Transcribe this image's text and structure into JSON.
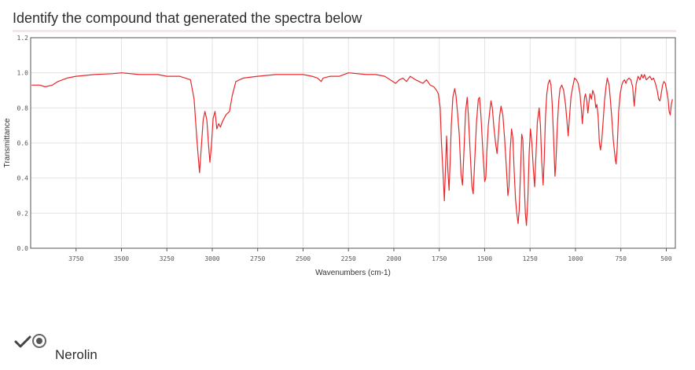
{
  "question": {
    "text": "Identify the compound that generated the spectra below"
  },
  "answer": {
    "label": "Nerolin",
    "selected": true,
    "correct": true
  },
  "colors": {
    "line": "#e8272a",
    "grid": "#e3e3e3",
    "frame": "#555555"
  },
  "chart_data": {
    "type": "line",
    "title": "",
    "xlabel": "Wavenumbers (cm-1)",
    "ylabel": "Transmittance",
    "xlim": [
      4000,
      450
    ],
    "ylim": [
      0,
      1.2
    ],
    "x_reversed": true,
    "grid": true,
    "legend": "none",
    "xticks": [
      {
        "value": 3750,
        "label": "3750"
      },
      {
        "value": 3500,
        "label": "3500"
      },
      {
        "value": 3250,
        "label": "3250"
      },
      {
        "value": 3000,
        "label": "3000"
      },
      {
        "value": 2750,
        "label": "2750"
      },
      {
        "value": 2500,
        "label": "2500"
      },
      {
        "value": 2250,
        "label": "2250"
      },
      {
        "value": 2000,
        "label": "2000"
      },
      {
        "value": 1750,
        "label": "1750"
      },
      {
        "value": 1500,
        "label": "1500"
      },
      {
        "value": 1250,
        "label": "1250"
      },
      {
        "value": 1000,
        "label": "1000"
      },
      {
        "value": 750,
        "label": "750"
      },
      {
        "value": 500,
        "label": "500"
      }
    ],
    "yticks": [
      {
        "value": 0.0,
        "label": "0.0"
      },
      {
        "value": 0.2,
        "label": "0.2"
      },
      {
        "value": 0.4,
        "label": "0.4"
      },
      {
        "value": 0.6,
        "label": "0.6"
      },
      {
        "value": 0.8,
        "label": "0.8"
      },
      {
        "value": 1.0,
        "label": "1.0"
      },
      {
        "value": 1.2,
        "label": "1.2"
      }
    ],
    "series": [
      {
        "color": "#e8272a",
        "points": [
          [
            3995,
            0.93
          ],
          [
            3950,
            0.93
          ],
          [
            3920,
            0.92
          ],
          [
            3880,
            0.93
          ],
          [
            3850,
            0.95
          ],
          [
            3800,
            0.97
          ],
          [
            3750,
            0.98
          ],
          [
            3650,
            0.99
          ],
          [
            3550,
            0.995
          ],
          [
            3500,
            1.0
          ],
          [
            3400,
            0.99
          ],
          [
            3300,
            0.99
          ],
          [
            3250,
            0.98
          ],
          [
            3180,
            0.98
          ],
          [
            3120,
            0.96
          ],
          [
            3100,
            0.85
          ],
          [
            3085,
            0.62
          ],
          [
            3070,
            0.43
          ],
          [
            3060,
            0.58
          ],
          [
            3050,
            0.73
          ],
          [
            3040,
            0.78
          ],
          [
            3030,
            0.73
          ],
          [
            3020,
            0.58
          ],
          [
            3013,
            0.49
          ],
          [
            3005,
            0.58
          ],
          [
            2995,
            0.74
          ],
          [
            2985,
            0.78
          ],
          [
            2975,
            0.68
          ],
          [
            2965,
            0.71
          ],
          [
            2955,
            0.69
          ],
          [
            2945,
            0.72
          ],
          [
            2925,
            0.76
          ],
          [
            2905,
            0.78
          ],
          [
            2890,
            0.87
          ],
          [
            2870,
            0.95
          ],
          [
            2830,
            0.97
          ],
          [
            2750,
            0.98
          ],
          [
            2650,
            0.99
          ],
          [
            2550,
            0.99
          ],
          [
            2500,
            0.99
          ],
          [
            2450,
            0.98
          ],
          [
            2420,
            0.97
          ],
          [
            2400,
            0.95
          ],
          [
            2390,
            0.97
          ],
          [
            2350,
            0.98
          ],
          [
            2300,
            0.98
          ],
          [
            2250,
            1.0
          ],
          [
            2150,
            0.99
          ],
          [
            2100,
            0.99
          ],
          [
            2050,
            0.98
          ],
          [
            2020,
            0.96
          ],
          [
            1990,
            0.94
          ],
          [
            1970,
            0.96
          ],
          [
            1950,
            0.97
          ],
          [
            1930,
            0.95
          ],
          [
            1910,
            0.98
          ],
          [
            1880,
            0.96
          ],
          [
            1860,
            0.95
          ],
          [
            1840,
            0.94
          ],
          [
            1820,
            0.96
          ],
          [
            1800,
            0.93
          ],
          [
            1780,
            0.92
          ],
          [
            1765,
            0.9
          ],
          [
            1755,
            0.88
          ],
          [
            1745,
            0.8
          ],
          [
            1738,
            0.6
          ],
          [
            1730,
            0.45
          ],
          [
            1722,
            0.27
          ],
          [
            1716,
            0.45
          ],
          [
            1710,
            0.64
          ],
          [
            1703,
            0.45
          ],
          [
            1696,
            0.33
          ],
          [
            1690,
            0.5
          ],
          [
            1684,
            0.7
          ],
          [
            1675,
            0.86
          ],
          [
            1665,
            0.91
          ],
          [
            1658,
            0.87
          ],
          [
            1650,
            0.78
          ],
          [
            1640,
            0.65
          ],
          [
            1630,
            0.42
          ],
          [
            1622,
            0.36
          ],
          [
            1614,
            0.55
          ],
          [
            1605,
            0.78
          ],
          [
            1596,
            0.86
          ],
          [
            1590,
            0.76
          ],
          [
            1580,
            0.55
          ],
          [
            1570,
            0.35
          ],
          [
            1563,
            0.31
          ],
          [
            1555,
            0.5
          ],
          [
            1545,
            0.72
          ],
          [
            1535,
            0.85
          ],
          [
            1528,
            0.86
          ],
          [
            1520,
            0.75
          ],
          [
            1510,
            0.55
          ],
          [
            1500,
            0.38
          ],
          [
            1494,
            0.4
          ],
          [
            1488,
            0.55
          ],
          [
            1480,
            0.7
          ],
          [
            1472,
            0.78
          ],
          [
            1465,
            0.84
          ],
          [
            1458,
            0.8
          ],
          [
            1450,
            0.7
          ],
          [
            1440,
            0.6
          ],
          [
            1432,
            0.54
          ],
          [
            1425,
            0.63
          ],
          [
            1418,
            0.75
          ],
          [
            1410,
            0.81
          ],
          [
            1400,
            0.76
          ],
          [
            1390,
            0.62
          ],
          [
            1380,
            0.45
          ],
          [
            1372,
            0.3
          ],
          [
            1366,
            0.35
          ],
          [
            1360,
            0.55
          ],
          [
            1352,
            0.68
          ],
          [
            1345,
            0.63
          ],
          [
            1338,
            0.45
          ],
          [
            1330,
            0.28
          ],
          [
            1323,
            0.2
          ],
          [
            1316,
            0.14
          ],
          [
            1310,
            0.22
          ],
          [
            1302,
            0.45
          ],
          [
            1296,
            0.65
          ],
          [
            1290,
            0.62
          ],
          [
            1283,
            0.4
          ],
          [
            1276,
            0.2
          ],
          [
            1270,
            0.13
          ],
          [
            1262,
            0.28
          ],
          [
            1255,
            0.55
          ],
          [
            1248,
            0.68
          ],
          [
            1240,
            0.6
          ],
          [
            1232,
            0.45
          ],
          [
            1225,
            0.35
          ],
          [
            1218,
            0.52
          ],
          [
            1210,
            0.72
          ],
          [
            1200,
            0.8
          ],
          [
            1193,
            0.7
          ],
          [
            1186,
            0.5
          ],
          [
            1178,
            0.36
          ],
          [
            1172,
            0.5
          ],
          [
            1165,
            0.75
          ],
          [
            1158,
            0.88
          ],
          [
            1150,
            0.94
          ],
          [
            1142,
            0.96
          ],
          [
            1135,
            0.93
          ],
          [
            1128,
            0.82
          ],
          [
            1120,
            0.62
          ],
          [
            1113,
            0.41
          ],
          [
            1108,
            0.48
          ],
          [
            1100,
            0.7
          ],
          [
            1092,
            0.84
          ],
          [
            1085,
            0.91
          ],
          [
            1075,
            0.93
          ],
          [
            1065,
            0.9
          ],
          [
            1055,
            0.82
          ],
          [
            1045,
            0.7
          ],
          [
            1040,
            0.64
          ],
          [
            1035,
            0.72
          ],
          [
            1025,
            0.86
          ],
          [
            1015,
            0.92
          ],
          [
            1005,
            0.97
          ],
          [
            995,
            0.96
          ],
          [
            985,
            0.94
          ],
          [
            975,
            0.88
          ],
          [
            968,
            0.8
          ],
          [
            962,
            0.71
          ],
          [
            957,
            0.78
          ],
          [
            950,
            0.86
          ],
          [
            945,
            0.88
          ],
          [
            938,
            0.84
          ],
          [
            932,
            0.77
          ],
          [
            926,
            0.83
          ],
          [
            920,
            0.88
          ],
          [
            912,
            0.85
          ],
          [
            905,
            0.9
          ],
          [
            895,
            0.87
          ],
          [
            888,
            0.8
          ],
          [
            882,
            0.82
          ],
          [
            875,
            0.75
          ],
          [
            868,
            0.6
          ],
          [
            862,
            0.56
          ],
          [
            855,
            0.62
          ],
          [
            848,
            0.72
          ],
          [
            840,
            0.84
          ],
          [
            832,
            0.92
          ],
          [
            825,
            0.97
          ],
          [
            815,
            0.93
          ],
          [
            808,
            0.85
          ],
          [
            800,
            0.74
          ],
          [
            792,
            0.62
          ],
          [
            785,
            0.55
          ],
          [
            780,
            0.5
          ],
          [
            776,
            0.48
          ],
          [
            770,
            0.58
          ],
          [
            762,
            0.78
          ],
          [
            754,
            0.88
          ],
          [
            745,
            0.93
          ],
          [
            738,
            0.95
          ],
          [
            730,
            0.96
          ],
          [
            722,
            0.94
          ],
          [
            715,
            0.96
          ],
          [
            705,
            0.97
          ],
          [
            695,
            0.96
          ],
          [
            685,
            0.92
          ],
          [
            680,
            0.85
          ],
          [
            676,
            0.81
          ],
          [
            672,
            0.87
          ],
          [
            665,
            0.94
          ],
          [
            655,
            0.98
          ],
          [
            645,
            0.96
          ],
          [
            636,
            0.99
          ],
          [
            628,
            0.97
          ],
          [
            620,
            0.99
          ],
          [
            610,
            0.96
          ],
          [
            600,
            0.97
          ],
          [
            590,
            0.98
          ],
          [
            580,
            0.96
          ],
          [
            570,
            0.97
          ],
          [
            560,
            0.94
          ],
          [
            550,
            0.9
          ],
          [
            542,
            0.85
          ],
          [
            535,
            0.84
          ],
          [
            528,
            0.88
          ],
          [
            520,
            0.93
          ],
          [
            513,
            0.95
          ],
          [
            505,
            0.94
          ],
          [
            498,
            0.9
          ],
          [
            490,
            0.85
          ],
          [
            484,
            0.78
          ],
          [
            478,
            0.76
          ],
          [
            472,
            0.82
          ],
          [
            466,
            0.85
          ]
        ]
      }
    ]
  }
}
